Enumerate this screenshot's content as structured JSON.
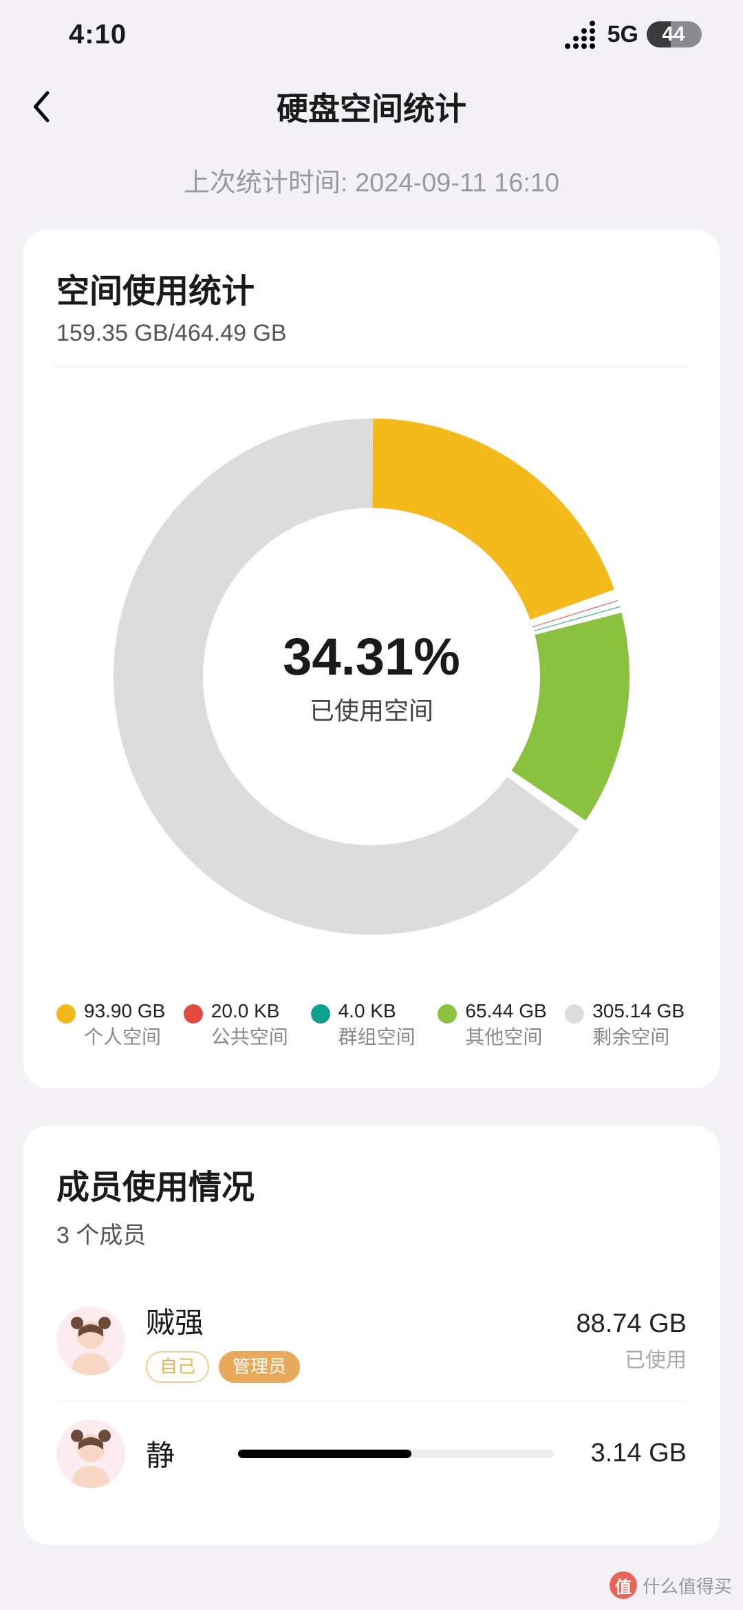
{
  "status_bar": {
    "time": "4:10",
    "network_label": "5G",
    "battery_percent": "44",
    "battery_fill_ratio": 0.44
  },
  "header": {
    "title": "硬盘空间统计"
  },
  "last_time_label": "上次统计时间: 2024-09-11 16:10",
  "usage_card": {
    "title": "空间使用统计",
    "subtitle": "159.35 GB/464.49 GB",
    "center_percent": "34.31%",
    "center_label": "已使用空间",
    "donut": {
      "type": "donut",
      "stroke_width": 130,
      "radius": 310,
      "gap_deg": 2.5,
      "background_color": "#ffffff",
      "segments": [
        {
          "label": "个人空间",
          "value_text": "93.90 GB",
          "fraction": 0.2021,
          "color": "#f4b91a"
        },
        {
          "label": "公共空间",
          "value_text": "20.0 KB",
          "fraction": 0.004,
          "color": "#e24b3b"
        },
        {
          "label": "群组空间",
          "value_text": "4.0 KB",
          "fraction": 0.004,
          "color": "#0fa08b"
        },
        {
          "label": "其他空间",
          "value_text": "65.44 GB",
          "fraction": 0.1409,
          "color": "#8ac23f"
        },
        {
          "label": "剩余空间",
          "value_text": "305.14 GB",
          "fraction": 0.6569,
          "color": "#dcdcdc"
        }
      ]
    }
  },
  "members_card": {
    "title": "成员使用情况",
    "subtitle": "3 个成员",
    "members": [
      {
        "name": "贼强",
        "tags": [
          {
            "text": "自己",
            "style": "self"
          },
          {
            "text": "管理员",
            "style": "admin"
          }
        ],
        "usage_text": "88.74 GB",
        "usage_label": "已使用",
        "avatar_bg": "#fdecef"
      },
      {
        "name": "静",
        "usage_text": "3.14 GB",
        "bar_fill_ratio": 0.55,
        "avatar_bg": "#fdecef"
      }
    ]
  },
  "watermark": {
    "text": "什么值得买"
  }
}
